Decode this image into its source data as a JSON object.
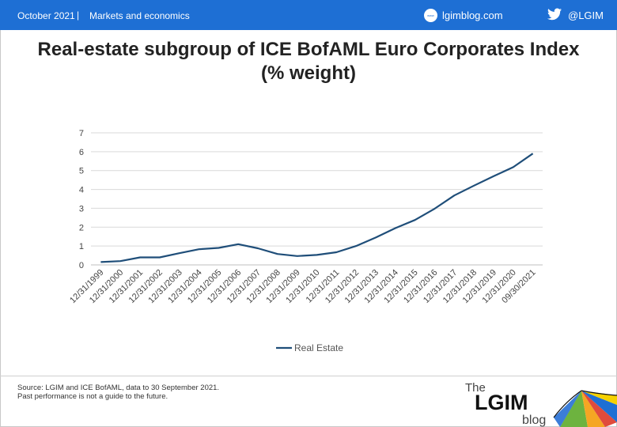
{
  "header": {
    "date": "October 2021",
    "separator": "|",
    "section": "Markets and economics",
    "blog": "lgimblog.com",
    "blog_icon_text": "www",
    "twitter_handle": "@LGIM",
    "bar_color": "#1e6fd4"
  },
  "chart_data": {
    "type": "line",
    "title_line1": "Real-estate subgroup of ICE BofAML Euro Corporates Index",
    "title_line2": "(% weight)",
    "categories": [
      "12/31/1999",
      "12/31/2000",
      "12/31/2001",
      "12/31/2002",
      "12/31/2003",
      "12/31/2004",
      "12/31/2005",
      "12/31/2006",
      "12/31/2007",
      "12/31/2008",
      "12/31/2009",
      "12/31/2010",
      "12/31/2011",
      "12/31/2012",
      "12/31/2013",
      "12/31/2014",
      "12/31/2015",
      "12/31/2016",
      "12/31/2017",
      "12/31/2018",
      "12/31/2019",
      "12/31/2020",
      "09/30/2021"
    ],
    "series": [
      {
        "name": "Real Estate",
        "color": "#1f4e79",
        "values": [
          0.15,
          0.2,
          0.4,
          0.4,
          0.62,
          0.83,
          0.9,
          1.1,
          0.88,
          0.58,
          0.47,
          0.53,
          0.67,
          1.0,
          1.45,
          1.95,
          2.38,
          2.98,
          3.68,
          4.2,
          4.7,
          5.18,
          5.9
        ]
      }
    ],
    "ylim": [
      0,
      7
    ],
    "yticks": [
      "0",
      "1",
      "2",
      "3",
      "4",
      "5",
      "6",
      "7"
    ],
    "grid": true,
    "legend_position": "bottom"
  },
  "footer": {
    "source_line1": "Source: LGIM and ICE BofAML,  data to 30 September 2021.",
    "source_line2": "Past performance is not a guide to the future.",
    "logo_the": "The",
    "logo_lgim": "LGIM",
    "logo_blog": "blog"
  }
}
